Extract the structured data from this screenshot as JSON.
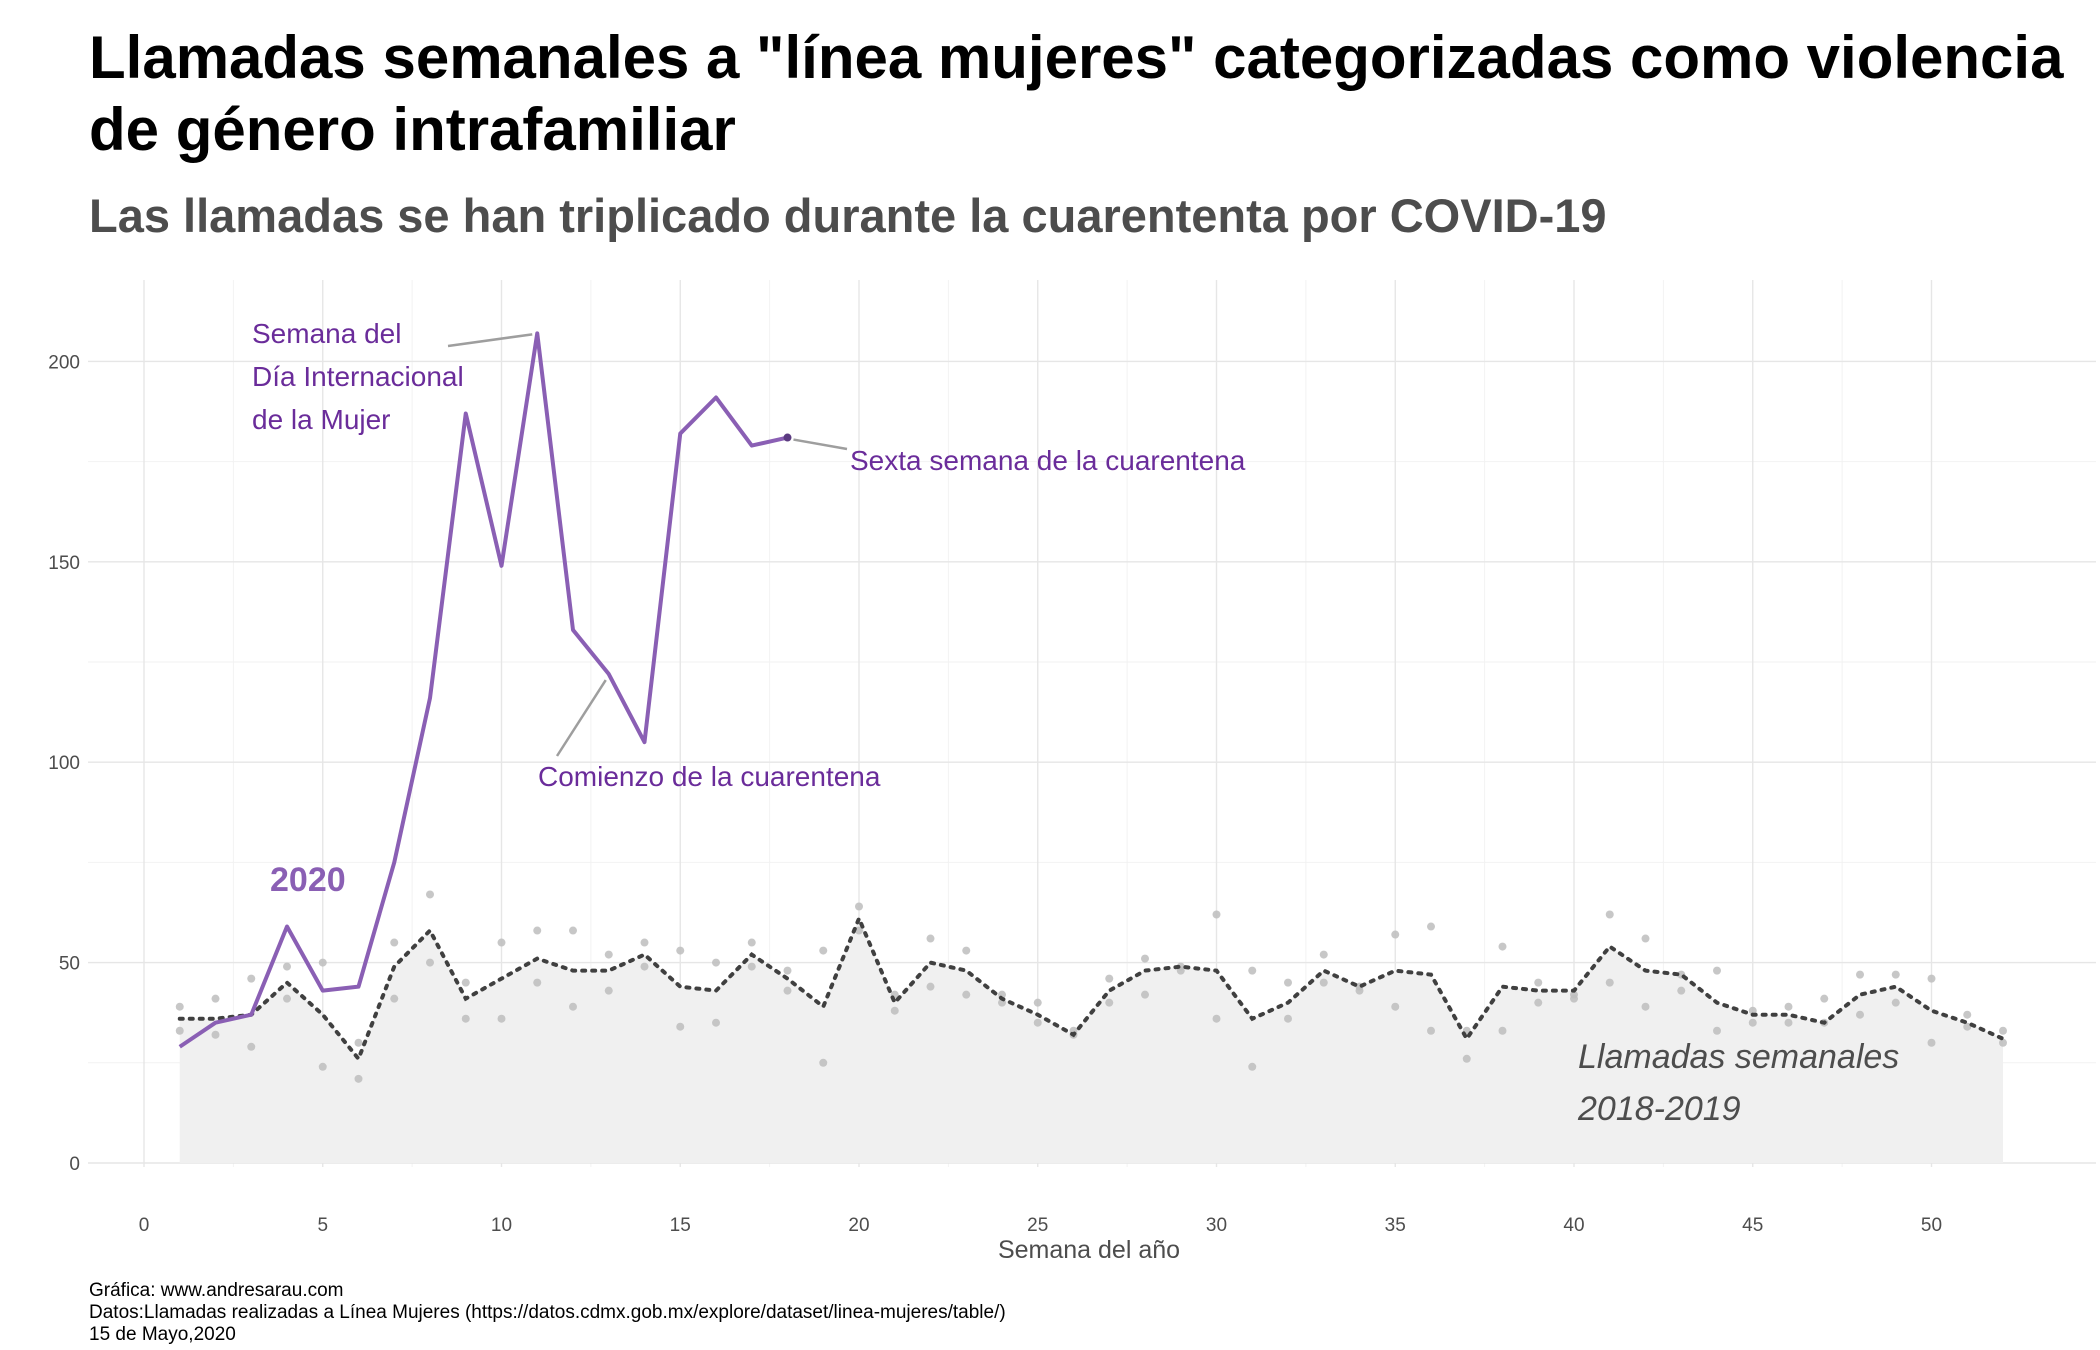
{
  "title": "Llamadas semanales a \"línea mujeres\" categorizadas como violencia de género intrafamiliar",
  "subtitle": "Las llamadas se han triplicado durante la cuarententa por COVID-19",
  "caption": {
    "line1": "Gráfica: www.andresarau.com",
    "line2": "Datos:Llamadas realizadas a Línea Mujeres (https://datos.cdmx.gob.mx/explore/dataset/linea-mujeres/table/)",
    "line3": "15 de Mayo,2020"
  },
  "colors": {
    "series_2020": "#8a5fb4",
    "annotation_text": "#6a2c9a",
    "history_area": "#f0f0f0",
    "history_points": "#bdbdbd",
    "history_line": "#404040",
    "grid": "#e6e6e6",
    "axis_text": "#4d4d4d"
  },
  "chart_data": {
    "type": "line",
    "xlabel": "Semana del año",
    "ylabel": "",
    "xlim": [
      0,
      52
    ],
    "ylim": [
      0,
      210
    ],
    "x_ticks": [
      0,
      5,
      10,
      15,
      20,
      25,
      30,
      35,
      40,
      45,
      50
    ],
    "y_ticks": [
      0,
      50,
      100,
      150,
      200
    ],
    "grid": true,
    "legend": "none",
    "series": [
      {
        "name": "2020",
        "style": "solid line",
        "x": [
          1,
          2,
          3,
          4,
          5,
          6,
          7,
          8,
          9,
          10,
          11,
          12,
          13,
          14,
          15,
          16,
          17,
          18
        ],
        "values": [
          29,
          35,
          37,
          59,
          43,
          44,
          75,
          116,
          187,
          149,
          207,
          133,
          122,
          105,
          182,
          191,
          179,
          181
        ]
      },
      {
        "name": "Llamadas semanales 2018-2019",
        "style": "dotted mean line over shaded area",
        "x": [
          1,
          2,
          3,
          4,
          5,
          6,
          7,
          8,
          9,
          10,
          11,
          12,
          13,
          14,
          15,
          16,
          17,
          18,
          19,
          20,
          21,
          22,
          23,
          24,
          25,
          26,
          27,
          28,
          29,
          30,
          31,
          32,
          33,
          34,
          35,
          36,
          37,
          38,
          39,
          40,
          41,
          42,
          43,
          44,
          45,
          46,
          47,
          48,
          49,
          50,
          51,
          52
        ],
        "values": [
          36,
          36,
          37,
          45,
          37,
          26,
          49,
          58,
          41,
          46,
          51,
          48,
          48,
          52,
          44,
          43,
          52,
          46,
          39,
          61,
          40,
          50,
          48,
          41,
          37,
          32,
          43,
          48,
          49,
          48,
          36,
          40,
          48,
          44,
          48,
          47,
          31,
          44,
          43,
          43,
          54,
          48,
          47,
          40,
          37,
          37,
          35,
          42,
          44,
          38,
          35,
          31
        ]
      }
    ],
    "points_2018_2019": [
      [
        1,
        39
      ],
      [
        1,
        33
      ],
      [
        2,
        41
      ],
      [
        2,
        32
      ],
      [
        3,
        46
      ],
      [
        3,
        29
      ],
      [
        4,
        49
      ],
      [
        4,
        41
      ],
      [
        5,
        50
      ],
      [
        5,
        24
      ],
      [
        6,
        30
      ],
      [
        6,
        21
      ],
      [
        7,
        55
      ],
      [
        7,
        41
      ],
      [
        8,
        67
      ],
      [
        8,
        50
      ],
      [
        9,
        45
      ],
      [
        9,
        36
      ],
      [
        10,
        55
      ],
      [
        10,
        36
      ],
      [
        11,
        58
      ],
      [
        11,
        45
      ],
      [
        12,
        58
      ],
      [
        12,
        39
      ],
      [
        13,
        52
      ],
      [
        13,
        43
      ],
      [
        14,
        55
      ],
      [
        14,
        49
      ],
      [
        15,
        53
      ],
      [
        15,
        34
      ],
      [
        16,
        50
      ],
      [
        16,
        35
      ],
      [
        17,
        55
      ],
      [
        17,
        49
      ],
      [
        18,
        48
      ],
      [
        18,
        43
      ],
      [
        19,
        53
      ],
      [
        19,
        25
      ],
      [
        20,
        64
      ],
      [
        20,
        58
      ],
      [
        21,
        42
      ],
      [
        21,
        38
      ],
      [
        22,
        56
      ],
      [
        22,
        44
      ],
      [
        23,
        53
      ],
      [
        23,
        42
      ],
      [
        24,
        42
      ],
      [
        24,
        40
      ],
      [
        25,
        40
      ],
      [
        25,
        35
      ],
      [
        26,
        33
      ],
      [
        26,
        32
      ],
      [
        27,
        46
      ],
      [
        27,
        40
      ],
      [
        28,
        51
      ],
      [
        28,
        42
      ],
      [
        29,
        49
      ],
      [
        29,
        48
      ],
      [
        30,
        62
      ],
      [
        30,
        36
      ],
      [
        31,
        48
      ],
      [
        31,
        24
      ],
      [
        32,
        45
      ],
      [
        32,
        36
      ],
      [
        33,
        52
      ],
      [
        33,
        45
      ],
      [
        34,
        44
      ],
      [
        34,
        43
      ],
      [
        35,
        57
      ],
      [
        35,
        39
      ],
      [
        36,
        59
      ],
      [
        36,
        33
      ],
      [
        37,
        33
      ],
      [
        37,
        26
      ],
      [
        38,
        54
      ],
      [
        38,
        33
      ],
      [
        39,
        45
      ],
      [
        39,
        40
      ],
      [
        40,
        42
      ],
      [
        40,
        41
      ],
      [
        41,
        62
      ],
      [
        41,
        45
      ],
      [
        42,
        56
      ],
      [
        42,
        39
      ],
      [
        43,
        47
      ],
      [
        43,
        43
      ],
      [
        44,
        48
      ],
      [
        44,
        33
      ],
      [
        45,
        38
      ],
      [
        45,
        35
      ],
      [
        46,
        39
      ],
      [
        46,
        35
      ],
      [
        47,
        41
      ],
      [
        47,
        35
      ],
      [
        48,
        47
      ],
      [
        48,
        37
      ],
      [
        49,
        47
      ],
      [
        49,
        40
      ],
      [
        50,
        46
      ],
      [
        50,
        30
      ],
      [
        51,
        37
      ],
      [
        51,
        34
      ],
      [
        52,
        33
      ],
      [
        52,
        30
      ]
    ],
    "annotations": [
      {
        "id": "dia-mujer",
        "lines": [
          "Semana del",
          "Día Internacional",
          "de la Mujer"
        ],
        "target": [
          11,
          207
        ]
      },
      {
        "id": "sexta",
        "lines": [
          "Sexta semana de la cuarentena"
        ],
        "target": [
          18,
          181
        ]
      },
      {
        "id": "comienzo",
        "lines": [
          "Comienzo de la cuarentena"
        ],
        "target": [
          13,
          122
        ]
      },
      {
        "id": "label-2020",
        "lines": [
          "2020"
        ]
      },
      {
        "id": "label-historico",
        "lines": [
          "Llamadas semanales",
          "2018-2019"
        ]
      }
    ]
  }
}
